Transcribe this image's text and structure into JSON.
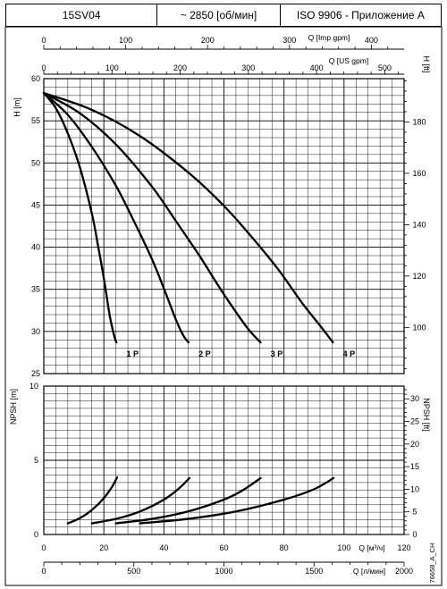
{
  "header": {
    "model": "15SV04",
    "speed": "~ 2850 [об/мин]",
    "standard": "ISO 9906 - Приложение A"
  },
  "side_code": "76658_A_CH",
  "chart_data": [
    {
      "type": "line",
      "name": "head",
      "xlabel": "Q [м³/ч]",
      "ylabel": "H [m]",
      "ylabel_right": "H [ft]",
      "top_axis_imp": {
        "label": "Q [Imp gpm]",
        "ticks": [
          0,
          100,
          200,
          300,
          400
        ]
      },
      "top_axis_us": {
        "label": "Q [US gpm]",
        "ticks": [
          0,
          100,
          200,
          300,
          400,
          500
        ]
      },
      "right_axis_ft": {
        "ticks": [
          100,
          120,
          140,
          160,
          180
        ]
      },
      "xlim": [
        0,
        120
      ],
      "ylim": [
        25,
        60
      ],
      "yticks": [
        25,
        30,
        35,
        40,
        45,
        50,
        55,
        60
      ],
      "grid": true,
      "series": [
        {
          "name": "1 P",
          "x": [
            0,
            4,
            8,
            12,
            16,
            18,
            20,
            22,
            23.5,
            24.2
          ],
          "y": [
            58.3,
            56.5,
            53.5,
            49.5,
            44,
            40.3,
            36.3,
            31.8,
            29.4,
            28.7
          ]
        },
        {
          "name": "2 P",
          "x": [
            0,
            8,
            16,
            24,
            30,
            36,
            40,
            44,
            46.5,
            48.2
          ],
          "y": [
            58.3,
            55.7,
            51.9,
            47.3,
            43.1,
            38.6,
            35.1,
            31.4,
            29.5,
            28.7
          ]
        },
        {
          "name": "3 P",
          "x": [
            0,
            12,
            24,
            36,
            44,
            52,
            58,
            64,
            68.5,
            72.2
          ],
          "y": [
            58.3,
            55.9,
            52.2,
            47.2,
            43.1,
            38.9,
            35.5,
            32.3,
            30.1,
            28.7
          ]
        },
        {
          "name": "4 P",
          "x": [
            0,
            16,
            32,
            48,
            60,
            70,
            78,
            86,
            92,
            96.3
          ],
          "y": [
            58.3,
            56.3,
            53.2,
            48.9,
            44.9,
            40.9,
            37.4,
            33.4,
            30.7,
            28.7
          ]
        }
      ]
    },
    {
      "type": "line",
      "name": "npsh",
      "xlabel": "Q [м³/ч]",
      "xlabel_bottom": "Q [л/мин]",
      "ylabel": "NPSH [m]",
      "ylabel_right": "NPSH [ft]",
      "xlim": [
        0,
        120
      ],
      "xticks": [
        0,
        20,
        40,
        60,
        80,
        100,
        120
      ],
      "lpm_ticks": [
        0,
        500,
        1000,
        1500,
        2000
      ],
      "right_axis_ft": {
        "ticks": [
          0,
          5,
          10,
          15,
          20,
          25,
          30
        ]
      },
      "ylim": [
        0,
        10
      ],
      "yticks": [
        0,
        5,
        10
      ],
      "grid": true,
      "series": [
        {
          "name": "1 P",
          "x": [
            8,
            12,
            16,
            20,
            23,
            24.4
          ],
          "y": [
            0.75,
            1.1,
            1.65,
            2.45,
            3.3,
            3.85
          ]
        },
        {
          "name": "2 P",
          "x": [
            16,
            24,
            32,
            40,
            45,
            48.5
          ],
          "y": [
            0.75,
            1.05,
            1.55,
            2.35,
            3.1,
            3.8
          ]
        },
        {
          "name": "3 P",
          "x": [
            24,
            36,
            48,
            60,
            66,
            72.2
          ],
          "y": [
            0.75,
            1.05,
            1.55,
            2.35,
            2.95,
            3.8
          ]
        },
        {
          "name": "4 P",
          "x": [
            32,
            48,
            64,
            80,
            90,
            96.5
          ],
          "y": [
            0.75,
            1.05,
            1.55,
            2.35,
            3.05,
            3.8
          ]
        }
      ]
    }
  ]
}
